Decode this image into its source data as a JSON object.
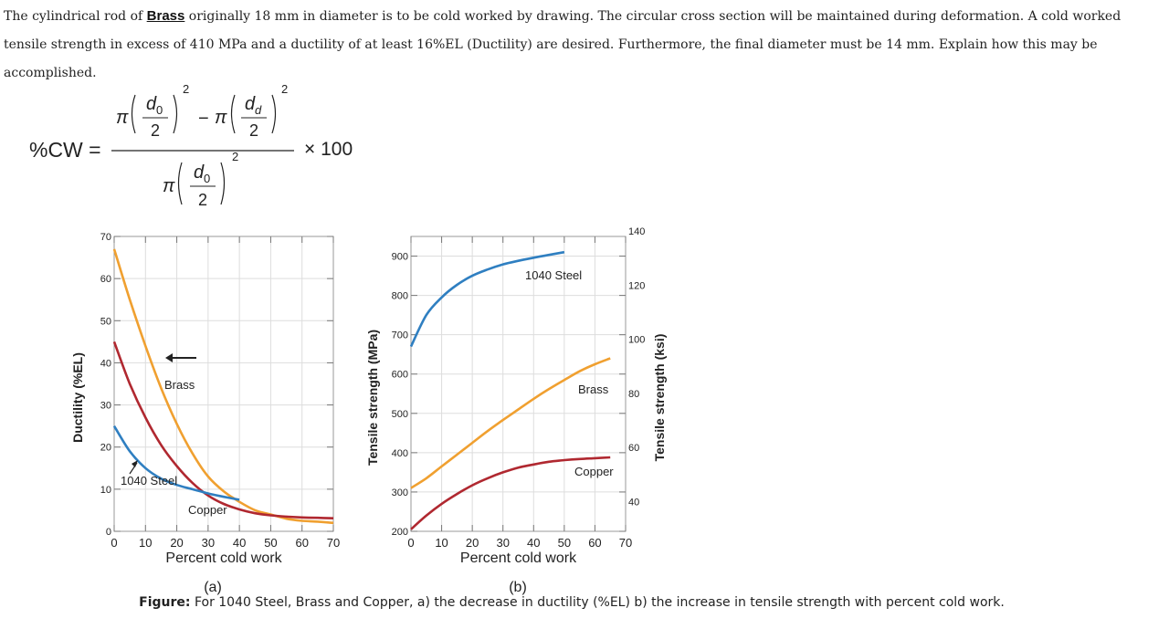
{
  "problem": {
    "before": "The cylindrical rod of ",
    "highlight": "Brass",
    "after": " originally 18 mm in diameter is to be cold worked by drawing. The circular cross section will be maintained during deformation. A cold worked tensile strength in excess of 410 MPa and a ductility of at least 16%EL (Ductility) are desired. Furthermore, the final diameter must be 14 mm. Explain how this may be accomplished."
  },
  "formula": {
    "lhs": "%CW =",
    "pi": "π",
    "minus": "−",
    "d0": "d",
    "d0_sub": "0",
    "dd": "d",
    "dd_sub": "d",
    "two": "2",
    "exp": "2",
    "times": "× 100"
  },
  "chart_data": [
    {
      "type": "line",
      "panel_label": "(a)",
      "xlabel": "Percent cold work",
      "ylabel": "Ductility (%EL)",
      "xlim": [
        0,
        70
      ],
      "ylim": [
        0,
        70
      ],
      "xticks": [
        0,
        10,
        20,
        30,
        40,
        50,
        60,
        70
      ],
      "yticks": [
        0,
        10,
        20,
        30,
        40,
        50,
        60,
        70
      ],
      "grid": true,
      "series": [
        {
          "name": "Brass",
          "color": "#f0a030",
          "x": [
            0,
            5,
            10,
            15,
            20,
            25,
            30,
            35,
            40,
            45,
            50,
            55,
            60,
            65,
            70
          ],
          "y": [
            67,
            55,
            44,
            34,
            25.5,
            18.5,
            13,
            9.5,
            7,
            5,
            4,
            3,
            2.5,
            2.3,
            2
          ]
        },
        {
          "name": "Copper",
          "color": "#b02830",
          "x": [
            0,
            5,
            10,
            15,
            20,
            25,
            30,
            35,
            40,
            45,
            50,
            55,
            60,
            65,
            70
          ],
          "y": [
            45,
            35,
            27,
            20.5,
            15.5,
            11.5,
            8.5,
            6.5,
            5.2,
            4.3,
            3.8,
            3.5,
            3.3,
            3.2,
            3.1
          ]
        },
        {
          "name": "1040 Steel",
          "color": "#2f7fc1",
          "x": [
            0,
            5,
            10,
            15,
            20,
            25,
            30,
            35,
            40
          ],
          "y": [
            25,
            19,
            15,
            12.5,
            11,
            10,
            9,
            8.2,
            7.5
          ]
        }
      ],
      "annotations": [
        "Brass",
        "1040 Steel",
        "Copper"
      ]
    },
    {
      "type": "line",
      "panel_label": "(b)",
      "xlabel": "Percent cold work",
      "ylabel": "Tensile strength (MPa)",
      "y2label": "Tensile strength (ksi)",
      "xlim": [
        0,
        70
      ],
      "ylim": [
        200,
        950
      ],
      "y2lim": [
        29,
        138
      ],
      "xticks": [
        0,
        10,
        20,
        30,
        40,
        50,
        60,
        70
      ],
      "yticks": [
        200,
        300,
        400,
        500,
        600,
        700,
        800,
        900
      ],
      "y2ticks": [
        40,
        60,
        80,
        100,
        120,
        140
      ],
      "grid": true,
      "series": [
        {
          "name": "1040 Steel",
          "color": "#2f7fc1",
          "x": [
            0,
            5,
            10,
            15,
            20,
            25,
            30,
            35,
            40,
            45,
            50
          ],
          "y": [
            670,
            750,
            795,
            827,
            850,
            866,
            879,
            888,
            896,
            903,
            910
          ]
        },
        {
          "name": "Brass",
          "color": "#f0a030",
          "x": [
            0,
            5,
            10,
            15,
            20,
            25,
            30,
            35,
            40,
            45,
            50,
            55,
            60,
            65
          ],
          "y": [
            310,
            335,
            365,
            395,
            425,
            455,
            483,
            510,
            537,
            562,
            585,
            607,
            625,
            640
          ]
        },
        {
          "name": "Copper",
          "color": "#b02830",
          "x": [
            0,
            5,
            10,
            15,
            20,
            25,
            30,
            35,
            40,
            45,
            50,
            55,
            60,
            65
          ],
          "y": [
            205,
            240,
            270,
            295,
            317,
            335,
            350,
            362,
            370,
            377,
            381,
            384,
            386,
            388
          ]
        }
      ],
      "annotations": [
        "1040 Steel",
        "Brass",
        "Copper"
      ]
    }
  ],
  "caption": {
    "label": "Figure:",
    "text": " For 1040 Steel, Brass and Copper, a) the decrease in ductility (%EL) b) the increase in tensile strength with percent cold work."
  }
}
